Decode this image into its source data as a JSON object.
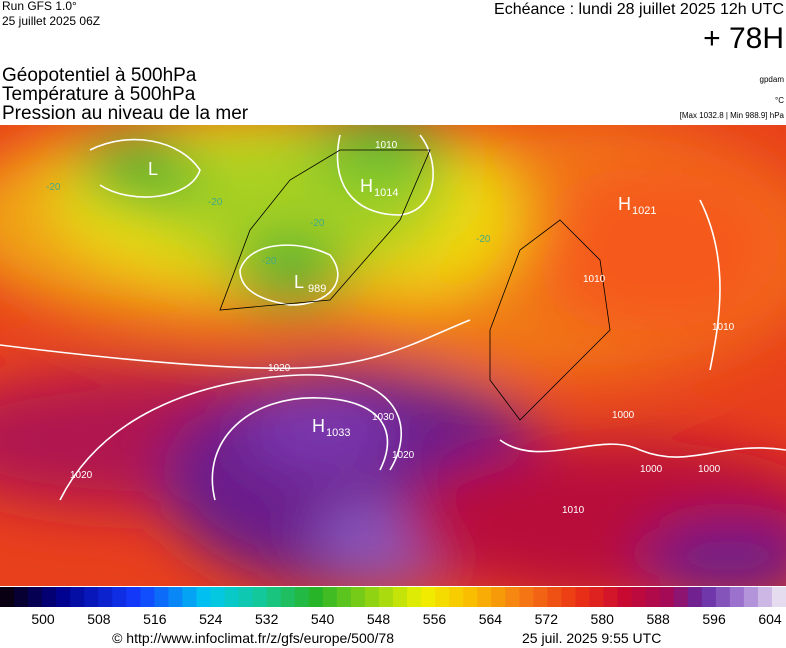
{
  "header": {
    "run": "Run GFS 1.0°",
    "date": "25 juillet 2025 06Z",
    "echeance": "Echéance : lundi 28 juillet 2025 12h UTC",
    "lead": "+ 78H",
    "fields": [
      "Géopotentiel à 500hPa",
      "Température à 500hPa",
      "Pression au niveau de la mer"
    ],
    "unit_geo": "gpdam",
    "unit_temp": "°C",
    "range": "[Max 1032.8 | Min 988.9] hPa"
  },
  "map": {
    "centers": [
      {
        "letter": "L"
      },
      {
        "letter": "H",
        "value": "1014"
      },
      {
        "letter": "L",
        "value": "989"
      },
      {
        "letter": "H",
        "value": "1021"
      },
      {
        "letter": "H",
        "value": "1033"
      }
    ],
    "isobar_labels": [
      "1010",
      "1020",
      "1030",
      "1020",
      "1020",
      "1010",
      "1010",
      "1000",
      "1000",
      "1000",
      "1010"
    ],
    "temperature_labels": [
      "-20",
      "-20",
      "-20",
      "-20",
      "-20"
    ]
  },
  "colorbar": {
    "ticks": [
      "500",
      "508",
      "516",
      "524",
      "532",
      "540",
      "548",
      "556",
      "564",
      "572",
      "580",
      "588",
      "596",
      "604"
    ]
  },
  "footer": {
    "url": "© http://www.infoclimat.fr/z/gfs/europe/500/78",
    "time": "25 juil. 2025  9:55 UTC"
  }
}
